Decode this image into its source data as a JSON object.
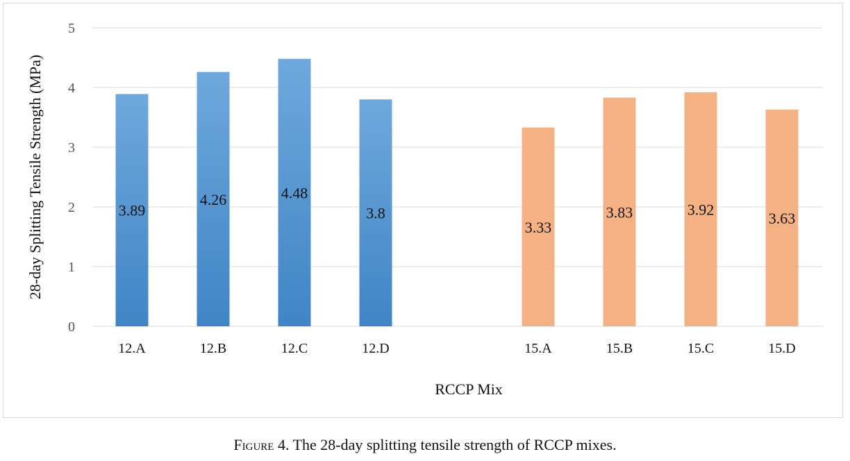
{
  "chart_data": {
    "type": "bar",
    "categories": [
      "12.A",
      "12.B",
      "12.C",
      "12.D",
      "15.A",
      "15.B",
      "15.C",
      "15.D"
    ],
    "series": [
      {
        "values": [
          3.89,
          4.26,
          4.48,
          3.8,
          null,
          null,
          null,
          null
        ],
        "color": "#5b9bd5"
      },
      {
        "values": [
          null,
          null,
          null,
          null,
          3.33,
          3.83,
          3.92,
          3.63
        ],
        "color": "#f4b183"
      }
    ],
    "xlabel": "RCCP Mix",
    "ylabel": "28-day Splitting Tensile Strength (MPa)",
    "ylim": [
      0,
      5
    ],
    "yticks": [
      "0",
      "1",
      "2",
      "3",
      "4",
      "5"
    ],
    "grid": true,
    "legend": "none",
    "data_labels": true
  },
  "caption": {
    "figure_label": "Figure 4.",
    "text": "The 28-day splitting tensile strength of RCCP mixes."
  }
}
